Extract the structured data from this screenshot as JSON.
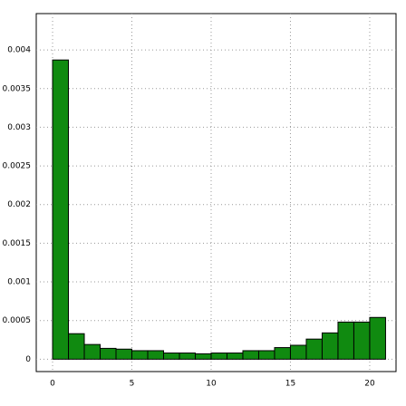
{
  "chart_data": {
    "type": "histogram",
    "bins": [
      0,
      1,
      2,
      3,
      4,
      5,
      6,
      7,
      8,
      9,
      10,
      11,
      12,
      13,
      14,
      15,
      16,
      17,
      18,
      19,
      20,
      21
    ],
    "values": [
      0.00387,
      0.00033,
      0.00019,
      0.00014,
      0.00013,
      0.00011,
      0.00011,
      8e-05,
      8e-05,
      7e-05,
      8e-05,
      8e-05,
      0.00011,
      0.00011,
      0.00015,
      0.00018,
      0.00026,
      0.00034,
      0.00048,
      0.00048,
      0.00054
    ],
    "color": "#108a10",
    "xlim": [
      -1.03,
      21.66
    ],
    "xticks": [
      0,
      5,
      10,
      15,
      20
    ],
    "ylim": [
      -0.00016,
      0.00447
    ],
    "yticks": [
      0,
      0.0005,
      0.001,
      0.0015,
      0.002,
      0.0025,
      0.003,
      0.0035,
      0.004
    ],
    "grid": true
  }
}
